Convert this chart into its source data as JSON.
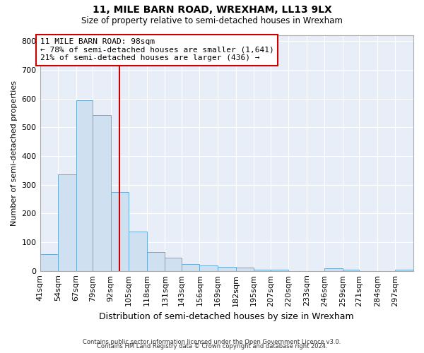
{
  "title1": "11, MILE BARN ROAD, WREXHAM, LL13 9LX",
  "title2": "Size of property relative to semi-detached houses in Wrexham",
  "xlabel": "Distribution of semi-detached houses by size in Wrexham",
  "ylabel": "Number of semi-detached properties",
  "annotation_line1": "11 MILE BARN ROAD: 98sqm",
  "annotation_line2": "← 78% of semi-detached houses are smaller (1,641)",
  "annotation_line3": "21% of semi-detached houses are larger (436) →",
  "footer1": "Contains HM Land Registry data © Crown copyright and database right 2024.",
  "footer2": "Contains public sector information licensed under the Open Government Licence v3.0.",
  "bar_color": "#cfe0f0",
  "bar_edge_color": "#6aaad4",
  "vline_color": "#cc0000",
  "vline_x": 98,
  "box_color": "#cc0000",
  "categories": [
    "41sqm",
    "54sqm",
    "67sqm",
    "79sqm",
    "92sqm",
    "105sqm",
    "118sqm",
    "131sqm",
    "143sqm",
    "156sqm",
    "169sqm",
    "182sqm",
    "195sqm",
    "207sqm",
    "220sqm",
    "233sqm",
    "246sqm",
    "259sqm",
    "271sqm",
    "284sqm",
    "297sqm"
  ],
  "bin_edges": [
    41,
    54,
    67,
    79,
    92,
    105,
    118,
    131,
    143,
    156,
    169,
    182,
    195,
    207,
    220,
    233,
    246,
    259,
    271,
    284,
    297,
    310
  ],
  "values": [
    57,
    337,
    595,
    543,
    275,
    137,
    65,
    45,
    25,
    18,
    13,
    12,
    5,
    3,
    0,
    0,
    8,
    3,
    0,
    0,
    5
  ],
  "ylim": [
    0,
    820
  ],
  "yticks": [
    0,
    100,
    200,
    300,
    400,
    500,
    600,
    700,
    800
  ],
  "background_color": "#ffffff",
  "plot_bg_color": "#e8eef8",
  "grid_color": "#ffffff"
}
